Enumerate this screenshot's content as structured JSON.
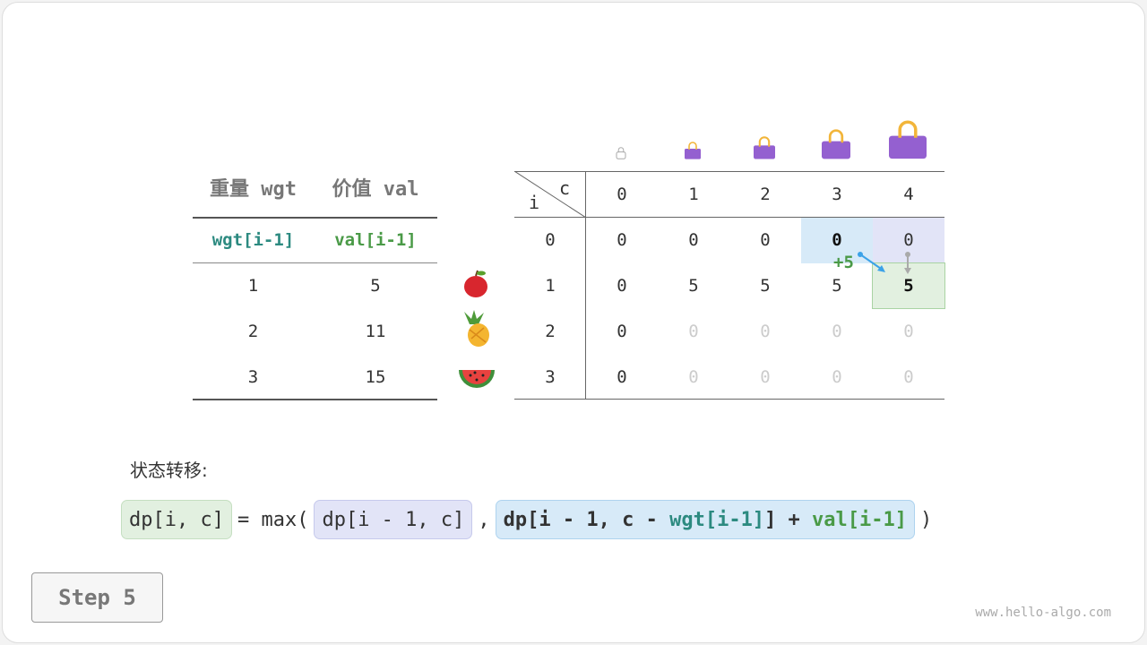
{
  "items_table": {
    "headers": [
      "重量 wgt",
      "价值 val"
    ],
    "subheaders": [
      "wgt[i-1]",
      "val[i-1]"
    ],
    "rows": [
      {
        "wgt": "1",
        "val": "5",
        "icon": "apple-icon"
      },
      {
        "wgt": "2",
        "val": "11",
        "icon": "pineapple-icon"
      },
      {
        "wgt": "3",
        "val": "15",
        "icon": "watermelon-icon"
      }
    ]
  },
  "dp_table": {
    "corner_i": "i",
    "corner_c": "c",
    "col_headers": [
      "0",
      "1",
      "2",
      "3",
      "4"
    ],
    "row_headers": [
      "0",
      "1",
      "2",
      "3"
    ],
    "rows": [
      [
        "0",
        "0",
        "0",
        "0",
        "0"
      ],
      [
        "0",
        "5",
        "5",
        "5",
        "5"
      ],
      [
        "0",
        "0",
        "0",
        "0",
        "0"
      ],
      [
        "0",
        "0",
        "0",
        "0",
        "0"
      ]
    ],
    "plus_label": "+5",
    "colors": {
      "blue": "#d7eaf8",
      "purple": "#e2e4f7",
      "green": "#e2f0e0"
    }
  },
  "transition_label": "状态转移:",
  "formula": {
    "lhs": "dp[i, c]",
    "eq": "= max(",
    "opt1": "dp[i - 1, c]",
    "comma": ",",
    "opt2_a": "dp[i - 1, c - ",
    "opt2_wgt": "wgt[i-1]",
    "opt2_b": "] + ",
    "opt2_val": "val[i-1]",
    "close": ")"
  },
  "step_button": "Step 5",
  "watermark": "www.hello-algo.com"
}
